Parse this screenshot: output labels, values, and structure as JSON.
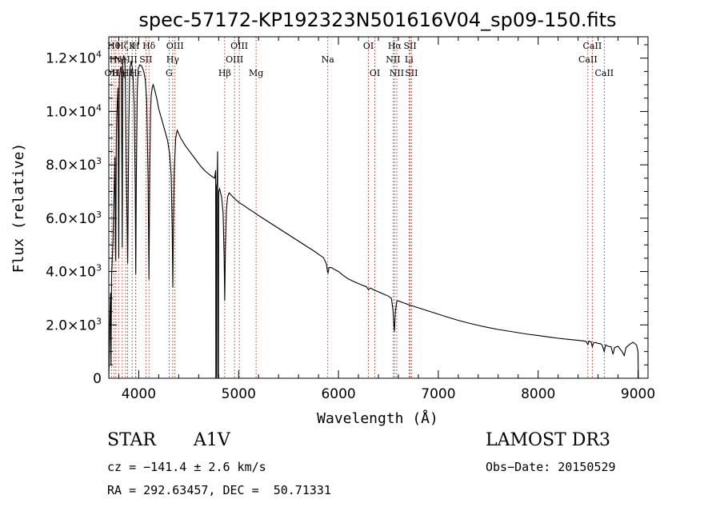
{
  "chart_data": {
    "type": "line",
    "title": "spec-57172-KP192323N501616V04_sp09-150.fits",
    "xlabel": "Wavelength (Å)",
    "ylabel": "Flux (relative)",
    "xlim": [
      3700,
      9100
    ],
    "ylim": [
      0,
      12800
    ],
    "x_ticks": [
      {
        "value": 4000,
        "label": "4000"
      },
      {
        "value": 5000,
        "label": "5000"
      },
      {
        "value": 6000,
        "label": "6000"
      },
      {
        "value": 7000,
        "label": "7000"
      },
      {
        "value": 8000,
        "label": "8000"
      },
      {
        "value": 9000,
        "label": "9000"
      }
    ],
    "y_ticks": [
      {
        "value": 0,
        "mant": "0",
        "exp": ""
      },
      {
        "value": 2000,
        "mant": "2.0×10",
        "exp": "3"
      },
      {
        "value": 4000,
        "mant": "4.0×10",
        "exp": "3"
      },
      {
        "value": 6000,
        "mant": "6.0×10",
        "exp": "3"
      },
      {
        "value": 8000,
        "mant": "8.0×10",
        "exp": "3"
      },
      {
        "value": 10000,
        "mant": "1.0×10",
        "exp": "4"
      },
      {
        "value": 12000,
        "mant": "1.2×10",
        "exp": "4"
      }
    ],
    "series": [
      {
        "name": "flux",
        "points": [
          [
            3700,
            0
          ],
          [
            3705,
            800
          ],
          [
            3712,
            2500
          ],
          [
            3718,
            3200
          ],
          [
            3722,
            500
          ],
          [
            3728,
            3800
          ],
          [
            3735,
            4500
          ],
          [
            3742,
            5200
          ],
          [
            3748,
            6200
          ],
          [
            3755,
            7200
          ],
          [
            3762,
            8300
          ],
          [
            3766,
            5000
          ],
          [
            3770,
            4400
          ],
          [
            3775,
            9000
          ],
          [
            3780,
            9800
          ],
          [
            3786,
            10400
          ],
          [
            3792,
            10900
          ],
          [
            3797,
            6500
          ],
          [
            3800,
            4500
          ],
          [
            3805,
            11200
          ],
          [
            3815,
            11600
          ],
          [
            3825,
            11700
          ],
          [
            3831,
            7800
          ],
          [
            3835,
            4900
          ],
          [
            3840,
            11900
          ],
          [
            3850,
            12100
          ],
          [
            3858,
            12000
          ],
          [
            3865,
            11400
          ],
          [
            3875,
            8200
          ],
          [
            3889,
            4300
          ],
          [
            3900,
            9500
          ],
          [
            3910,
            11600
          ],
          [
            3925,
            11900
          ],
          [
            3940,
            11500
          ],
          [
            3955,
            10200
          ],
          [
            3965,
            7000
          ],
          [
            3970,
            3900
          ],
          [
            3976,
            7500
          ],
          [
            3985,
            10800
          ],
          [
            3995,
            11600
          ],
          [
            4010,
            11750
          ],
          [
            4030,
            11700
          ],
          [
            4050,
            11500
          ],
          [
            4065,
            11200
          ],
          [
            4080,
            10400
          ],
          [
            4093,
            7500
          ],
          [
            4102,
            3700
          ],
          [
            4110,
            7800
          ],
          [
            4118,
            10000
          ],
          [
            4125,
            10600
          ],
          [
            4135,
            10900
          ],
          [
            4145,
            11000
          ],
          [
            4160,
            10800
          ],
          [
            4180,
            10500
          ],
          [
            4200,
            10100
          ],
          [
            4230,
            9700
          ],
          [
            4260,
            9300
          ],
          [
            4290,
            8900
          ],
          [
            4310,
            8400
          ],
          [
            4325,
            7600
          ],
          [
            4335,
            5500
          ],
          [
            4341,
            3400
          ],
          [
            4347,
            5800
          ],
          [
            4355,
            7800
          ],
          [
            4370,
            9000
          ],
          [
            4385,
            9300
          ],
          [
            4420,
            9000
          ],
          [
            4470,
            8700
          ],
          [
            4520,
            8450
          ],
          [
            4570,
            8200
          ],
          [
            4620,
            7950
          ],
          [
            4670,
            7750
          ],
          [
            4720,
            7600
          ],
          [
            4760,
            7500
          ],
          [
            4770,
            7800
          ],
          [
            4772,
            0
          ],
          [
            4778,
            0
          ],
          [
            4780,
            7200
          ],
          [
            4785,
            7300
          ],
          [
            4790,
            8500
          ],
          [
            4793,
            100
          ],
          [
            4798,
            0
          ],
          [
            4801,
            7000
          ],
          [
            4810,
            7100
          ],
          [
            4830,
            6800
          ],
          [
            4845,
            6200
          ],
          [
            4855,
            4500
          ],
          [
            4861,
            2900
          ],
          [
            4867,
            4800
          ],
          [
            4878,
            6300
          ],
          [
            4890,
            6800
          ],
          [
            4905,
            6950
          ],
          [
            4930,
            6850
          ],
          [
            4970,
            6700
          ],
          [
            5000,
            6600
          ],
          [
            5050,
            6480
          ],
          [
            5100,
            6350
          ],
          [
            5150,
            6230
          ],
          [
            5200,
            6100
          ],
          [
            5250,
            5980
          ],
          [
            5300,
            5860
          ],
          [
            5350,
            5740
          ],
          [
            5400,
            5620
          ],
          [
            5450,
            5500
          ],
          [
            5500,
            5380
          ],
          [
            5550,
            5260
          ],
          [
            5600,
            5140
          ],
          [
            5650,
            5020
          ],
          [
            5700,
            4900
          ],
          [
            5750,
            4780
          ],
          [
            5800,
            4650
          ],
          [
            5850,
            4520
          ],
          [
            5880,
            4280
          ],
          [
            5890,
            4000
          ],
          [
            5896,
            3950
          ],
          [
            5905,
            4150
          ],
          [
            5930,
            4150
          ],
          [
            5950,
            4100
          ],
          [
            6000,
            4000
          ],
          [
            6050,
            3850
          ],
          [
            6100,
            3720
          ],
          [
            6150,
            3630
          ],
          [
            6200,
            3550
          ],
          [
            6250,
            3470
          ],
          [
            6280,
            3430
          ],
          [
            6300,
            3320
          ],
          [
            6320,
            3380
          ],
          [
            6350,
            3320
          ],
          [
            6400,
            3240
          ],
          [
            6450,
            3160
          ],
          [
            6500,
            3080
          ],
          [
            6530,
            3000
          ],
          [
            6545,
            2600
          ],
          [
            6560,
            1750
          ],
          [
            6570,
            2500
          ],
          [
            6585,
            2900
          ],
          [
            6600,
            2900
          ],
          [
            6650,
            2830
          ],
          [
            6700,
            2760
          ],
          [
            6750,
            2700
          ],
          [
            6800,
            2640
          ],
          [
            6850,
            2580
          ],
          [
            6900,
            2520
          ],
          [
            6950,
            2460
          ],
          [
            7000,
            2400
          ],
          [
            7100,
            2280
          ],
          [
            7200,
            2170
          ],
          [
            7300,
            2070
          ],
          [
            7400,
            1980
          ],
          [
            7500,
            1900
          ],
          [
            7600,
            1830
          ],
          [
            7700,
            1770
          ],
          [
            7800,
            1710
          ],
          [
            7900,
            1650
          ],
          [
            8000,
            1600
          ],
          [
            8100,
            1550
          ],
          [
            8200,
            1500
          ],
          [
            8300,
            1460
          ],
          [
            8400,
            1420
          ],
          [
            8450,
            1400
          ],
          [
            8480,
            1380
          ],
          [
            8498,
            1260
          ],
          [
            8508,
            1390
          ],
          [
            8530,
            1360
          ],
          [
            8542,
            1180
          ],
          [
            8555,
            1330
          ],
          [
            8580,
            1340
          ],
          [
            8600,
            1300
          ],
          [
            8620,
            1300
          ],
          [
            8640,
            1250
          ],
          [
            8662,
            1000
          ],
          [
            8675,
            1250
          ],
          [
            8700,
            1200
          ],
          [
            8730,
            1180
          ],
          [
            8750,
            900
          ],
          [
            8765,
            1150
          ],
          [
            8800,
            1200
          ],
          [
            8840,
            1000
          ],
          [
            8862,
            850
          ],
          [
            8880,
            1150
          ],
          [
            8920,
            1280
          ],
          [
            8950,
            1350
          ],
          [
            8985,
            1250
          ],
          [
            9000,
            1000
          ],
          [
            9003,
            0
          ]
        ]
      }
    ],
    "lines": [
      {
        "x": 3727,
        "label": "OII",
        "row": 2
      },
      {
        "x": 3750,
        "label": "Hθ",
        "row": 0
      },
      {
        "x": 3771,
        "label": "Hη",
        "row": 1
      },
      {
        "x": 3798,
        "label": "Hη",
        "row": 2
      },
      {
        "x": 3835,
        "label": "Hζ",
        "row": 0
      },
      {
        "x": 3869,
        "label": "NeIII",
        "row": 1
      },
      {
        "x": 3889,
        "label": "Hζ",
        "row": 2
      },
      {
        "x": 3934,
        "label": "K",
        "row": 0
      },
      {
        "x": 3970,
        "label": "H",
        "row": 0
      },
      {
        "x": 3970,
        "label": "Hε",
        "row": 2
      },
      {
        "x": 4071,
        "label": "SII",
        "row": 1
      },
      {
        "x": 4102,
        "label": "Hδ",
        "row": 0
      },
      {
        "x": 4304,
        "label": "G",
        "row": 2
      },
      {
        "x": 4340,
        "label": "Hγ",
        "row": 1
      },
      {
        "x": 4363,
        "label": "OIII",
        "row": 0
      },
      {
        "x": 4861,
        "label": "Hβ",
        "row": 2
      },
      {
        "x": 4959,
        "label": "OIII",
        "row": 1
      },
      {
        "x": 5007,
        "label": "OIII",
        "row": 0
      },
      {
        "x": 5175,
        "label": "Mg",
        "row": 2
      },
      {
        "x": 5893,
        "label": "Na",
        "row": 1
      },
      {
        "x": 6300,
        "label": "OI",
        "row": 0
      },
      {
        "x": 6364,
        "label": "OI",
        "row": 2
      },
      {
        "x": 6548,
        "label": "NII",
        "row": 1
      },
      {
        "x": 6563,
        "label": "Hα",
        "row": 0
      },
      {
        "x": 6584,
        "label": "NII",
        "row": 2
      },
      {
        "x": 6707,
        "label": "Li",
        "row": 1
      },
      {
        "x": 6717,
        "label": "SII",
        "row": 0
      },
      {
        "x": 6731,
        "label": "SII",
        "row": 2
      },
      {
        "x": 8498,
        "label": "CaII",
        "row": 1
      },
      {
        "x": 8542,
        "label": "CaII",
        "row": 0
      },
      {
        "x": 8662,
        "label": "CaII",
        "row": 2
      }
    ]
  },
  "info": {
    "object_class": "STAR",
    "subclass": "A1V",
    "survey": "LAMOST DR3",
    "cz": "cz = −141.4 ± 2.6 km/s",
    "obs_date": "Obs−Date: 20150529",
    "coords": "RA = 292.63457, DEC =  50.71331"
  },
  "colors": {
    "spectrum": "#000000",
    "line_markers": "#c0392b",
    "axes": "#000000"
  }
}
